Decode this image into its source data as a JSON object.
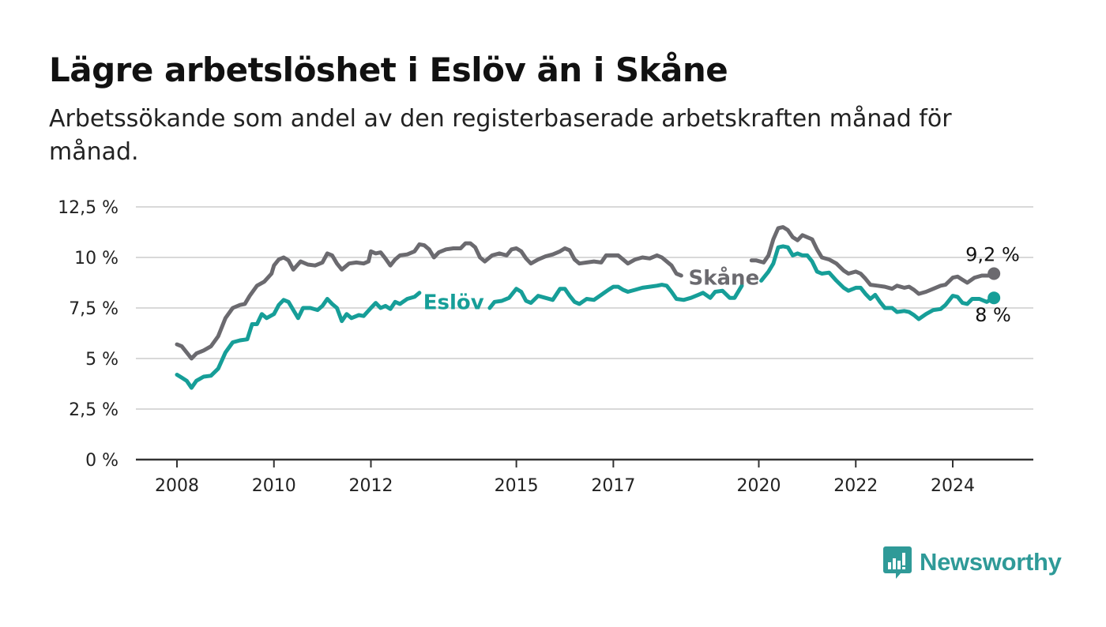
{
  "header": {
    "title": "Lägre arbetslöshet i Eslöv än i Skåne",
    "subtitle": "Arbetssökande som andel av den registerbaserade arbetskraften månad för månad."
  },
  "brand": {
    "name": "Newsworthy",
    "icon": "bar-chart-speech-bubble-icon",
    "color": "#2f9a98"
  },
  "chart_data": {
    "type": "line",
    "title": "Lägre arbetslöshet i Eslöv än i Skåne",
    "subtitle": "Arbetssökande som andel av den registerbaserade arbetskraften månad för månad.",
    "xlabel": "",
    "ylabel": "",
    "ylim": [
      0,
      12.5
    ],
    "xlim": [
      2007.35,
      2026.0
    ],
    "y_ticks": [
      {
        "value": 0,
        "label": "0 %"
      },
      {
        "value": 2.5,
        "label": "2,5 %"
      },
      {
        "value": 5,
        "label": "5 %"
      },
      {
        "value": 7.5,
        "label": "7,5 %"
      },
      {
        "value": 10,
        "label": "10 %"
      },
      {
        "value": 12.5,
        "label": "12,5 %"
      }
    ],
    "x_ticks": [
      {
        "value": 2008,
        "label": "2008"
      },
      {
        "value": 2010,
        "label": "2010"
      },
      {
        "value": 2012,
        "label": "2012"
      },
      {
        "value": 2015,
        "label": "2015"
      },
      {
        "value": 2017,
        "label": "2017"
      },
      {
        "value": 2020,
        "label": "2020"
      },
      {
        "value": 2022,
        "label": "2022"
      },
      {
        "value": 2024,
        "label": "2024"
      }
    ],
    "grid": true,
    "series": [
      {
        "name": "Skåne",
        "color": "#6b6a6f",
        "end_label": "9,2 %",
        "points": [
          [
            2008.0,
            5.7
          ],
          [
            2008.1,
            5.6
          ],
          [
            2008.2,
            5.3
          ],
          [
            2008.3,
            5.0
          ],
          [
            2008.4,
            5.25
          ],
          [
            2008.55,
            5.4
          ],
          [
            2008.7,
            5.6
          ],
          [
            2008.85,
            6.1
          ],
          [
            2009.0,
            7.0
          ],
          [
            2009.15,
            7.5
          ],
          [
            2009.3,
            7.65
          ],
          [
            2009.4,
            7.7
          ],
          [
            2009.5,
            8.1
          ],
          [
            2009.65,
            8.6
          ],
          [
            2009.8,
            8.8
          ],
          [
            2009.95,
            9.2
          ],
          [
            2010.0,
            9.6
          ],
          [
            2010.1,
            9.9
          ],
          [
            2010.2,
            10.0
          ],
          [
            2010.3,
            9.85
          ],
          [
            2010.4,
            9.4
          ],
          [
            2010.55,
            9.8
          ],
          [
            2010.7,
            9.65
          ],
          [
            2010.85,
            9.6
          ],
          [
            2011.0,
            9.75
          ],
          [
            2011.1,
            10.2
          ],
          [
            2011.2,
            10.1
          ],
          [
            2011.3,
            9.7
          ],
          [
            2011.4,
            9.4
          ],
          [
            2011.55,
            9.7
          ],
          [
            2011.7,
            9.75
          ],
          [
            2011.85,
            9.7
          ],
          [
            2011.95,
            9.8
          ],
          [
            2012.0,
            10.3
          ],
          [
            2012.1,
            10.2
          ],
          [
            2012.2,
            10.25
          ],
          [
            2012.3,
            9.95
          ],
          [
            2012.4,
            9.6
          ],
          [
            2012.5,
            9.9
          ],
          [
            2012.6,
            10.1
          ],
          [
            2012.75,
            10.15
          ],
          [
            2012.9,
            10.3
          ],
          [
            2013.0,
            10.65
          ],
          [
            2013.1,
            10.6
          ],
          [
            2013.2,
            10.4
          ],
          [
            2013.3,
            10.0
          ],
          [
            2013.4,
            10.25
          ],
          [
            2013.55,
            10.4
          ],
          [
            2013.7,
            10.45
          ],
          [
            2013.85,
            10.45
          ],
          [
            2013.95,
            10.7
          ],
          [
            2014.05,
            10.7
          ],
          [
            2014.15,
            10.5
          ],
          [
            2014.25,
            10.0
          ],
          [
            2014.35,
            9.8
          ],
          [
            2014.5,
            10.1
          ],
          [
            2014.65,
            10.2
          ],
          [
            2014.8,
            10.1
          ],
          [
            2014.9,
            10.4
          ],
          [
            2015.0,
            10.45
          ],
          [
            2015.1,
            10.3
          ],
          [
            2015.2,
            9.95
          ],
          [
            2015.3,
            9.7
          ],
          [
            2015.45,
            9.9
          ],
          [
            2015.6,
            10.05
          ],
          [
            2015.75,
            10.15
          ],
          [
            2015.9,
            10.3
          ],
          [
            2016.0,
            10.45
          ],
          [
            2016.1,
            10.35
          ],
          [
            2016.2,
            9.9
          ],
          [
            2016.3,
            9.7
          ],
          [
            2016.45,
            9.75
          ],
          [
            2016.6,
            9.8
          ],
          [
            2016.75,
            9.75
          ],
          [
            2016.85,
            10.1
          ],
          [
            2017.0,
            10.1
          ],
          [
            2017.1,
            10.1
          ],
          [
            2017.2,
            9.9
          ],
          [
            2017.3,
            9.7
          ],
          [
            2017.45,
            9.9
          ],
          [
            2017.6,
            10.0
          ],
          [
            2017.75,
            9.95
          ],
          [
            2017.9,
            10.1
          ],
          [
            2018.0,
            10.0
          ],
          [
            2018.1,
            9.8
          ],
          [
            2018.2,
            9.6
          ],
          [
            2018.3,
            9.2
          ],
          [
            2018.4,
            9.1
          ],
          [
            2019.85,
            9.85
          ],
          [
            2019.95,
            9.85
          ],
          [
            2020.1,
            9.75
          ],
          [
            2020.2,
            10.1
          ],
          [
            2020.3,
            10.9
          ],
          [
            2020.4,
            11.45
          ],
          [
            2020.5,
            11.5
          ],
          [
            2020.6,
            11.35
          ],
          [
            2020.7,
            11.0
          ],
          [
            2020.8,
            10.85
          ],
          [
            2020.9,
            11.1
          ],
          [
            2021.0,
            11.0
          ],
          [
            2021.1,
            10.9
          ],
          [
            2021.2,
            10.4
          ],
          [
            2021.3,
            10.0
          ],
          [
            2021.45,
            9.9
          ],
          [
            2021.6,
            9.7
          ],
          [
            2021.75,
            9.35
          ],
          [
            2021.85,
            9.2
          ],
          [
            2022.0,
            9.3
          ],
          [
            2022.1,
            9.2
          ],
          [
            2022.2,
            8.95
          ],
          [
            2022.3,
            8.65
          ],
          [
            2022.45,
            8.6
          ],
          [
            2022.6,
            8.55
          ],
          [
            2022.75,
            8.45
          ],
          [
            2022.85,
            8.6
          ],
          [
            2023.0,
            8.5
          ],
          [
            2023.1,
            8.55
          ],
          [
            2023.2,
            8.4
          ],
          [
            2023.3,
            8.2
          ],
          [
            2023.45,
            8.3
          ],
          [
            2023.6,
            8.45
          ],
          [
            2023.75,
            8.6
          ],
          [
            2023.85,
            8.65
          ],
          [
            2024.0,
            9.0
          ],
          [
            2024.1,
            9.05
          ],
          [
            2024.2,
            8.9
          ],
          [
            2024.3,
            8.75
          ],
          [
            2024.45,
            9.0
          ],
          [
            2024.6,
            9.1
          ],
          [
            2024.75,
            9.1
          ],
          [
            2024.85,
            9.2
          ]
        ]
      },
      {
        "name": "Eslöv",
        "color": "#169e98",
        "end_label": "8 %",
        "points": [
          [
            2008.0,
            4.2
          ],
          [
            2008.1,
            4.05
          ],
          [
            2008.2,
            3.9
          ],
          [
            2008.3,
            3.55
          ],
          [
            2008.4,
            3.9
          ],
          [
            2008.55,
            4.1
          ],
          [
            2008.7,
            4.15
          ],
          [
            2008.85,
            4.5
          ],
          [
            2009.0,
            5.3
          ],
          [
            2009.15,
            5.8
          ],
          [
            2009.3,
            5.9
          ],
          [
            2009.45,
            5.95
          ],
          [
            2009.55,
            6.7
          ],
          [
            2009.65,
            6.7
          ],
          [
            2009.75,
            7.2
          ],
          [
            2009.85,
            7.0
          ],
          [
            2010.0,
            7.2
          ],
          [
            2010.1,
            7.65
          ],
          [
            2010.2,
            7.9
          ],
          [
            2010.3,
            7.8
          ],
          [
            2010.4,
            7.4
          ],
          [
            2010.5,
            7.0
          ],
          [
            2010.6,
            7.5
          ],
          [
            2010.75,
            7.5
          ],
          [
            2010.9,
            7.4
          ],
          [
            2011.0,
            7.6
          ],
          [
            2011.1,
            7.95
          ],
          [
            2011.2,
            7.7
          ],
          [
            2011.3,
            7.5
          ],
          [
            2011.4,
            6.85
          ],
          [
            2011.5,
            7.2
          ],
          [
            2011.6,
            7.0
          ],
          [
            2011.75,
            7.15
          ],
          [
            2011.85,
            7.1
          ],
          [
            2012.0,
            7.5
          ],
          [
            2012.1,
            7.75
          ],
          [
            2012.2,
            7.5
          ],
          [
            2012.3,
            7.6
          ],
          [
            2012.4,
            7.45
          ],
          [
            2012.5,
            7.8
          ],
          [
            2012.6,
            7.7
          ],
          [
            2012.75,
            7.95
          ],
          [
            2012.9,
            8.05
          ],
          [
            2013.0,
            8.25
          ],
          [
            2014.45,
            7.5
          ],
          [
            2014.55,
            7.8
          ],
          [
            2014.7,
            7.85
          ],
          [
            2014.85,
            8.0
          ],
          [
            2015.0,
            8.45
          ],
          [
            2015.1,
            8.3
          ],
          [
            2015.2,
            7.85
          ],
          [
            2015.3,
            7.75
          ],
          [
            2015.45,
            8.1
          ],
          [
            2015.6,
            8.0
          ],
          [
            2015.75,
            7.9
          ],
          [
            2015.9,
            8.45
          ],
          [
            2016.0,
            8.45
          ],
          [
            2016.1,
            8.1
          ],
          [
            2016.2,
            7.8
          ],
          [
            2016.3,
            7.7
          ],
          [
            2016.45,
            7.95
          ],
          [
            2016.6,
            7.9
          ],
          [
            2016.75,
            8.15
          ],
          [
            2016.9,
            8.4
          ],
          [
            2017.0,
            8.55
          ],
          [
            2017.1,
            8.55
          ],
          [
            2017.2,
            8.4
          ],
          [
            2017.3,
            8.3
          ],
          [
            2017.45,
            8.4
          ],
          [
            2017.6,
            8.5
          ],
          [
            2017.75,
            8.55
          ],
          [
            2017.9,
            8.6
          ],
          [
            2018.0,
            8.65
          ],
          [
            2018.1,
            8.6
          ],
          [
            2018.2,
            8.3
          ],
          [
            2018.3,
            7.95
          ],
          [
            2018.45,
            7.9
          ],
          [
            2018.6,
            8.0
          ],
          [
            2018.75,
            8.15
          ],
          [
            2018.85,
            8.25
          ],
          [
            2019.0,
            8.0
          ],
          [
            2019.1,
            8.3
          ],
          [
            2019.25,
            8.35
          ],
          [
            2019.4,
            8.0
          ],
          [
            2019.5,
            8.0
          ],
          [
            2019.65,
            8.6
          ],
          [
            2020.05,
            8.85
          ],
          [
            2020.2,
            9.3
          ],
          [
            2020.3,
            9.7
          ],
          [
            2020.4,
            10.5
          ],
          [
            2020.5,
            10.55
          ],
          [
            2020.6,
            10.5
          ],
          [
            2020.7,
            10.1
          ],
          [
            2020.8,
            10.2
          ],
          [
            2020.9,
            10.1
          ],
          [
            2021.0,
            10.1
          ],
          [
            2021.1,
            9.8
          ],
          [
            2021.2,
            9.3
          ],
          [
            2021.3,
            9.2
          ],
          [
            2021.45,
            9.25
          ],
          [
            2021.6,
            8.85
          ],
          [
            2021.75,
            8.5
          ],
          [
            2021.85,
            8.35
          ],
          [
            2022.0,
            8.5
          ],
          [
            2022.1,
            8.5
          ],
          [
            2022.2,
            8.2
          ],
          [
            2022.3,
            7.95
          ],
          [
            2022.4,
            8.15
          ],
          [
            2022.5,
            7.8
          ],
          [
            2022.6,
            7.5
          ],
          [
            2022.75,
            7.5
          ],
          [
            2022.85,
            7.3
          ],
          [
            2023.0,
            7.35
          ],
          [
            2023.1,
            7.3
          ],
          [
            2023.2,
            7.15
          ],
          [
            2023.3,
            6.95
          ],
          [
            2023.45,
            7.2
          ],
          [
            2023.6,
            7.4
          ],
          [
            2023.75,
            7.45
          ],
          [
            2023.85,
            7.65
          ],
          [
            2024.0,
            8.1
          ],
          [
            2024.1,
            8.05
          ],
          [
            2024.2,
            7.75
          ],
          [
            2024.3,
            7.7
          ],
          [
            2024.4,
            7.95
          ],
          [
            2024.55,
            7.95
          ],
          [
            2024.7,
            7.8
          ],
          [
            2024.85,
            8.0
          ]
        ]
      }
    ],
    "legend": "inline labels near lines"
  }
}
